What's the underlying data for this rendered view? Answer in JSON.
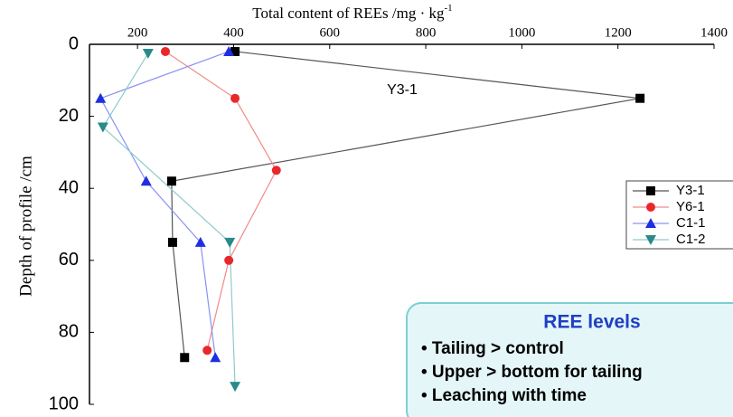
{
  "chart_data": {
    "type": "line",
    "x_label": "Total content of REEs /mg · kg",
    "x_label_superscript": "-1",
    "y_label": "Depth of profile /cm",
    "annotation": "Y3-1",
    "xlim": [
      100,
      1400
    ],
    "xticks": [
      200,
      400,
      600,
      800,
      1000,
      1200,
      1400
    ],
    "ylim": [
      0,
      100
    ],
    "yticks": [
      0,
      20,
      40,
      60,
      80,
      100
    ],
    "y_inverted": true,
    "x_axis_top": true,
    "legend_position": "right",
    "series": [
      {
        "name": "Y3-1",
        "color": "#000000",
        "line_color": "#555555",
        "marker": "square",
        "x": [
          403,
          1246,
          271,
          273,
          298
        ],
        "y": [
          2,
          15,
          38,
          55,
          87
        ]
      },
      {
        "name": "Y6-1",
        "color": "#e8282b",
        "line_color": "#f08a8a",
        "marker": "circle",
        "x": [
          258,
          403,
          489,
          390,
          345
        ],
        "y": [
          2,
          15,
          35,
          60,
          85
        ]
      },
      {
        "name": "C1-1",
        "color": "#1f2ee0",
        "line_color": "#8a92f0",
        "marker": "triangle-up",
        "x": [
          390,
          123,
          218,
          331,
          362
        ],
        "y": [
          2,
          15,
          38,
          55,
          87
        ]
      },
      {
        "name": "C1-2",
        "color": "#2a8a8a",
        "line_color": "#8fcaca",
        "marker": "triangle-down",
        "x": [
          222,
          128,
          392,
          403
        ],
        "y": [
          2.5,
          23,
          55,
          95
        ]
      }
    ]
  },
  "info_box": {
    "title": "REE levels",
    "bullets": [
      "• Tailing > control",
      "• Upper > bottom for tailing",
      "• Leaching with time"
    ]
  }
}
